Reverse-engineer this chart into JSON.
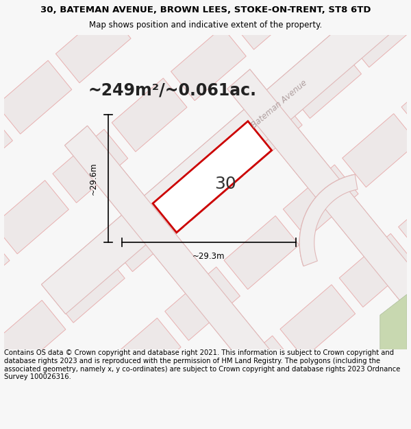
{
  "title_line1": "30, BATEMAN AVENUE, BROWN LEES, STOKE-ON-TRENT, ST8 6TD",
  "title_line2": "Map shows position and indicative extent of the property.",
  "area_text": "~249m²/~0.061ac.",
  "label_number": "30",
  "dim_width": "~29.3m",
  "dim_height": "~29.6m",
  "street_label": "Bateman Avenue",
  "footer_text": "Contains OS data © Crown copyright and database right 2021. This information is subject to Crown copyright and database rights 2023 and is reproduced with the permission of HM Land Registry. The polygons (including the associated geometry, namely x, y co-ordinates) are subject to Crown copyright and database rights 2023 Ordnance Survey 100026316.",
  "bg_color": "#f7f7f7",
  "map_bg": "#f2efef",
  "plot_color": "#cc0000",
  "parcel_stroke": "#e8b0b0",
  "parcel_fill": "#ede8e8",
  "road_color": "#f5f0f0",
  "road_stroke": "#e0b8b8",
  "green_fill": "#c8d8b0",
  "title_fontsize": 9.5,
  "subtitle_fontsize": 8.5,
  "area_fontsize": 17,
  "label_fontsize": 18,
  "footer_fontsize": 7.2,
  "dim_fontsize": 8.5,
  "street_fontsize": 8.5
}
